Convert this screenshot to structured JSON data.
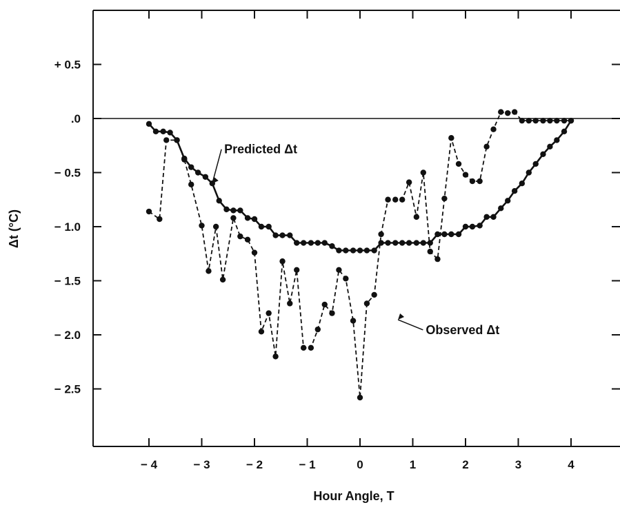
{
  "chart_data": {
    "type": "line",
    "title": "",
    "xlabel": "Hour Angle, T",
    "ylabel": "Δt (°C)",
    "xlim": [
      -4.8,
      4.8
    ],
    "ylim": [
      -3.0,
      1.0
    ],
    "xticks": [
      -4,
      -3,
      -2,
      -1,
      0,
      1,
      2,
      3,
      4
    ],
    "xtick_labels": [
      "− 4",
      "− 3",
      "− 2",
      "− 1",
      "0",
      "1",
      "2",
      "3",
      "4"
    ],
    "yticks": [
      0.5,
      0.0,
      -0.5,
      -1.0,
      -1.5,
      -2.0,
      -2.5
    ],
    "ytick_labels": [
      "+ 0.5",
      ".0",
      "− 0.5",
      "− 1.0",
      "− 1.5",
      "− 2.0",
      "− 2.5"
    ],
    "grid": false,
    "zero_line": true,
    "series": [
      {
        "name": "Predicted Δt",
        "style": "solid",
        "color": "#111111",
        "x": [
          -4.0,
          -3.87,
          -3.73,
          -3.6,
          -3.47,
          -3.33,
          -3.2,
          -3.07,
          -2.93,
          -2.8,
          -2.67,
          -2.53,
          -2.4,
          -2.27,
          -2.13,
          -2.0,
          -1.87,
          -1.73,
          -1.6,
          -1.47,
          -1.33,
          -1.2,
          -1.07,
          -0.93,
          -0.8,
          -0.67,
          -0.53,
          -0.4,
          -0.27,
          -0.13,
          0.0,
          0.13,
          0.27,
          0.4,
          0.53,
          0.67,
          0.8,
          0.93,
          1.07,
          1.2,
          1.33,
          1.47,
          1.6,
          1.73,
          1.87,
          2.0,
          2.13,
          2.27,
          2.4,
          2.53,
          2.67,
          2.8,
          2.93,
          3.07,
          3.2,
          3.33,
          3.47,
          3.6,
          3.73,
          3.87,
          4.0
        ],
        "values": [
          -0.05,
          -0.12,
          -0.12,
          -0.13,
          -0.2,
          -0.37,
          -0.45,
          -0.5,
          -0.54,
          -0.6,
          -0.76,
          -0.84,
          -0.85,
          -0.85,
          -0.92,
          -0.93,
          -1.0,
          -1.0,
          -1.08,
          -1.08,
          -1.08,
          -1.15,
          -1.15,
          -1.15,
          -1.15,
          -1.15,
          -1.18,
          -1.22,
          -1.22,
          -1.22,
          -1.22,
          -1.22,
          -1.22,
          -1.15,
          -1.15,
          -1.15,
          -1.15,
          -1.15,
          -1.15,
          -1.15,
          -1.15,
          -1.07,
          -1.07,
          -1.07,
          -1.07,
          -1.0,
          -1.0,
          -0.99,
          -0.91,
          -0.91,
          -0.83,
          -0.76,
          -0.67,
          -0.6,
          -0.5,
          -0.42,
          -0.33,
          -0.26,
          -0.2,
          -0.12,
          -0.02
        ]
      },
      {
        "name": "Observed Δt",
        "style": "dashed",
        "color": "#111111",
        "x": [
          -4.0,
          -3.8,
          -3.67,
          -3.47,
          -3.33,
          -3.2,
          -3.0,
          -2.87,
          -2.73,
          -2.6,
          -2.4,
          -2.27,
          -2.13,
          -2.0,
          -1.87,
          -1.73,
          -1.6,
          -1.47,
          -1.33,
          -1.2,
          -1.07,
          -0.93,
          -0.8,
          -0.67,
          -0.53,
          -0.4,
          -0.27,
          -0.13,
          0.0,
          0.13,
          0.27,
          0.4,
          0.53,
          0.67,
          0.8,
          0.93,
          1.07,
          1.2,
          1.33,
          1.47,
          1.6,
          1.73,
          1.87,
          2.0,
          2.13,
          2.27,
          2.4,
          2.53,
          2.67,
          2.8,
          2.93,
          3.07,
          3.2,
          3.33,
          3.47,
          3.6,
          3.73,
          3.87,
          4.0
        ],
        "values": [
          -0.86,
          -0.93,
          -0.2,
          -0.2,
          -0.38,
          -0.61,
          -0.99,
          -1.41,
          -1.0,
          -1.49,
          -0.92,
          -1.09,
          -1.12,
          -1.24,
          -1.97,
          -1.8,
          -2.2,
          -1.32,
          -1.71,
          -1.4,
          -2.12,
          -2.12,
          -1.95,
          -1.72,
          -1.8,
          -1.4,
          -1.48,
          -1.87,
          -2.58,
          -1.71,
          -1.63,
          -1.07,
          -0.75,
          -0.75,
          -0.75,
          -0.59,
          -0.91,
          -0.5,
          -1.23,
          -1.3,
          -0.74,
          -0.18,
          -0.42,
          -0.52,
          -0.58,
          -0.58,
          -0.26,
          -0.1,
          0.06,
          0.05,
          0.06,
          -0.02,
          -0.02,
          -0.02,
          -0.02,
          -0.02,
          -0.02,
          -0.02,
          -0.02
        ]
      }
    ],
    "annotations": [
      {
        "text": "Predicted Δt",
        "target_series": 0,
        "x": -2.8,
        "y": -0.6,
        "label_x": -2.6,
        "label_y": -0.31
      },
      {
        "text": "Observed Δt",
        "target_series": 1,
        "x": 0.72,
        "y": -1.86,
        "label_x": 1.22,
        "label_y": -1.98
      }
    ]
  }
}
